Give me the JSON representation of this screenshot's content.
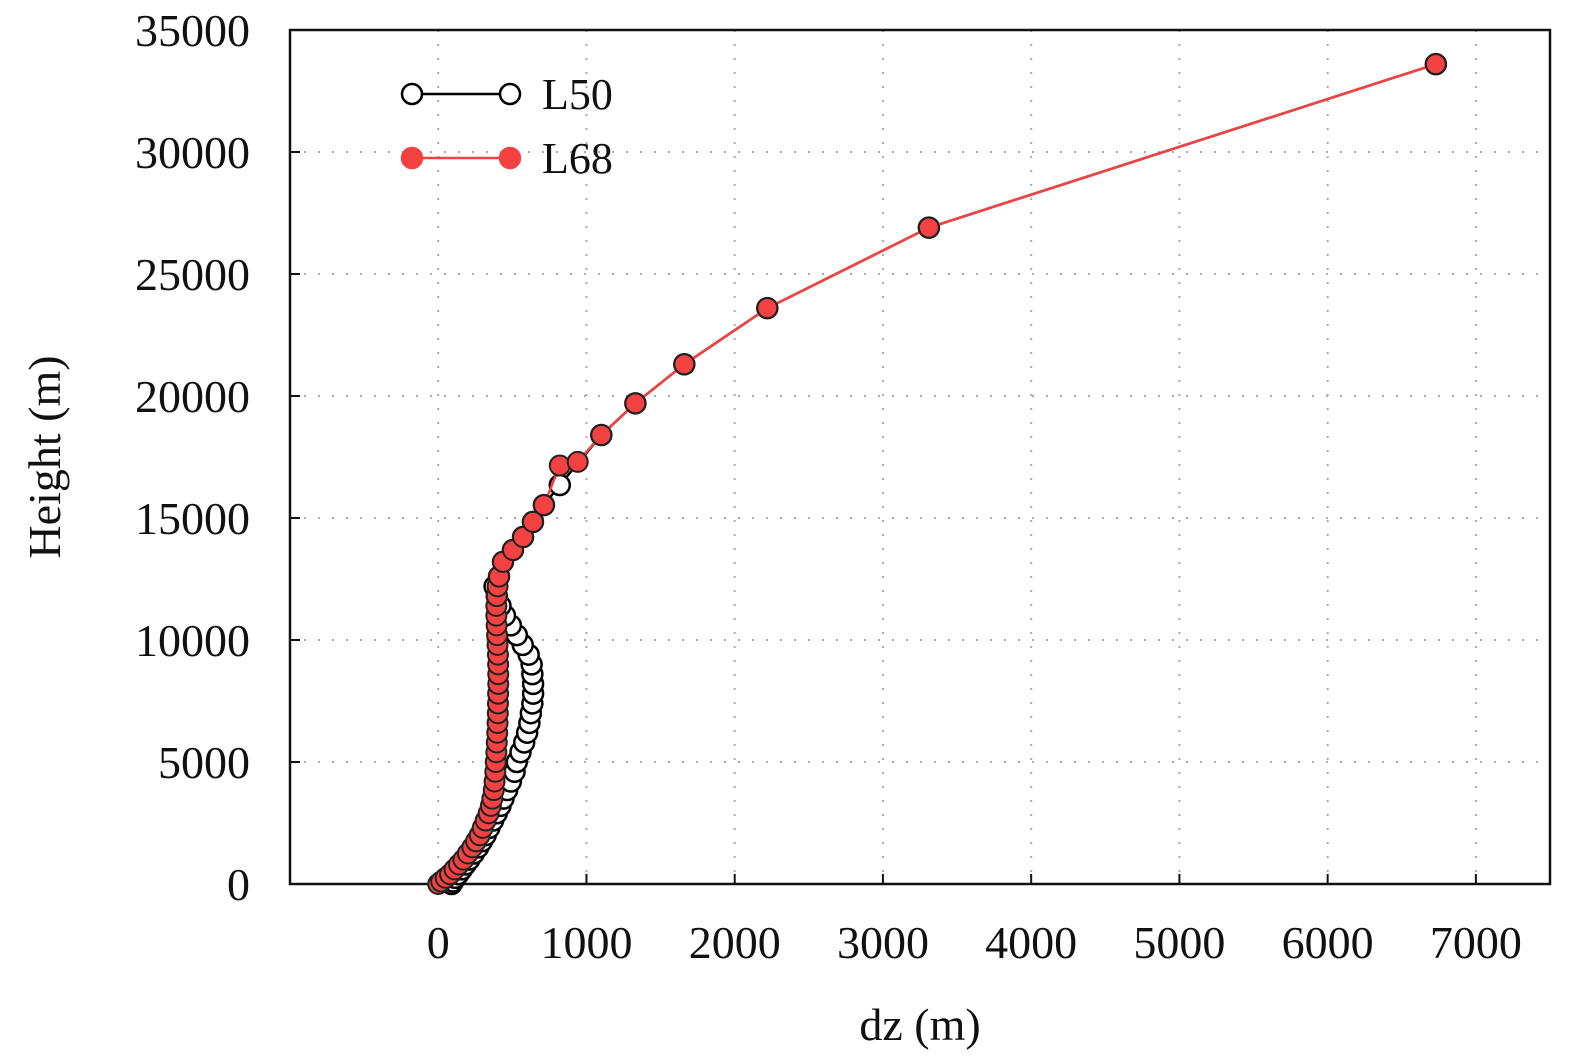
{
  "chart_data": {
    "type": "line",
    "xlabel": "dz (m)",
    "ylabel": "Height (m)",
    "xlim": [
      -1000,
      7500
    ],
    "ylim": [
      0,
      35000
    ],
    "xticks": [
      0,
      1000,
      2000,
      3000,
      4000,
      5000,
      6000,
      7000
    ],
    "yticks": [
      0,
      5000,
      10000,
      15000,
      20000,
      25000,
      30000,
      35000
    ],
    "grid": true,
    "legend": "upper left",
    "series": [
      {
        "name": "L50",
        "color": "#000000",
        "marker": "open",
        "x": [
          90,
          100,
          115,
          135,
          160,
          185,
          210,
          240,
          270,
          295,
          320,
          345,
          370,
          395,
          420,
          440,
          465,
          490,
          515,
          530,
          555,
          580,
          600,
          615,
          625,
          635,
          640,
          640,
          635,
          630,
          610,
          570,
          530,
          490,
          450,
          420,
          395,
          380,
          410,
          437,
          504,
          572,
          639,
          713,
          820,
          1100,
          1330,
          1660,
          2220,
          3310,
          6730
        ],
        "values": [
          0,
          100,
          250,
          400,
          600,
          800,
          1000,
          1250,
          1500,
          1750,
          2000,
          2300,
          2600,
          2900,
          3200,
          3500,
          3850,
          4200,
          4600,
          5000,
          5400,
          5800,
          6200,
          6600,
          7000,
          7400,
          7800,
          8200,
          8600,
          9000,
          9400,
          9800,
          10200,
          10600,
          11000,
          11400,
          11800,
          12200,
          12600,
          13200,
          13690,
          14220,
          14840,
          15530,
          16350,
          18400,
          19700,
          21300,
          23600,
          26900,
          33600
        ]
      },
      {
        "name": "L68",
        "color": "#f44242",
        "marker": "filled",
        "x": [
          0,
          20,
          50,
          80,
          110,
          140,
          170,
          200,
          230,
          255,
          280,
          300,
          320,
          340,
          355,
          365,
          375,
          380,
          385,
          388,
          392,
          395,
          398,
          400,
          402,
          403,
          404,
          405,
          405,
          404,
          403,
          400,
          397,
          394,
          392,
          392,
          395,
          400,
          410,
          437,
          504,
          572,
          639,
          713,
          820,
          941,
          1100,
          1330,
          1660,
          2220,
          3310,
          6730
        ],
        "values": [
          0,
          100,
          250,
          400,
          600,
          800,
          1000,
          1250,
          1500,
          1750,
          2000,
          2300,
          2600,
          2900,
          3200,
          3500,
          3850,
          4200,
          4600,
          5000,
          5400,
          5800,
          6200,
          6600,
          7000,
          7400,
          7800,
          8200,
          8600,
          9000,
          9400,
          9800,
          10200,
          10600,
          11000,
          11400,
          11800,
          12200,
          12600,
          13200,
          13690,
          14220,
          14840,
          15530,
          17150,
          17300,
          18400,
          19700,
          21300,
          23600,
          26900,
          33600
        ]
      }
    ]
  }
}
